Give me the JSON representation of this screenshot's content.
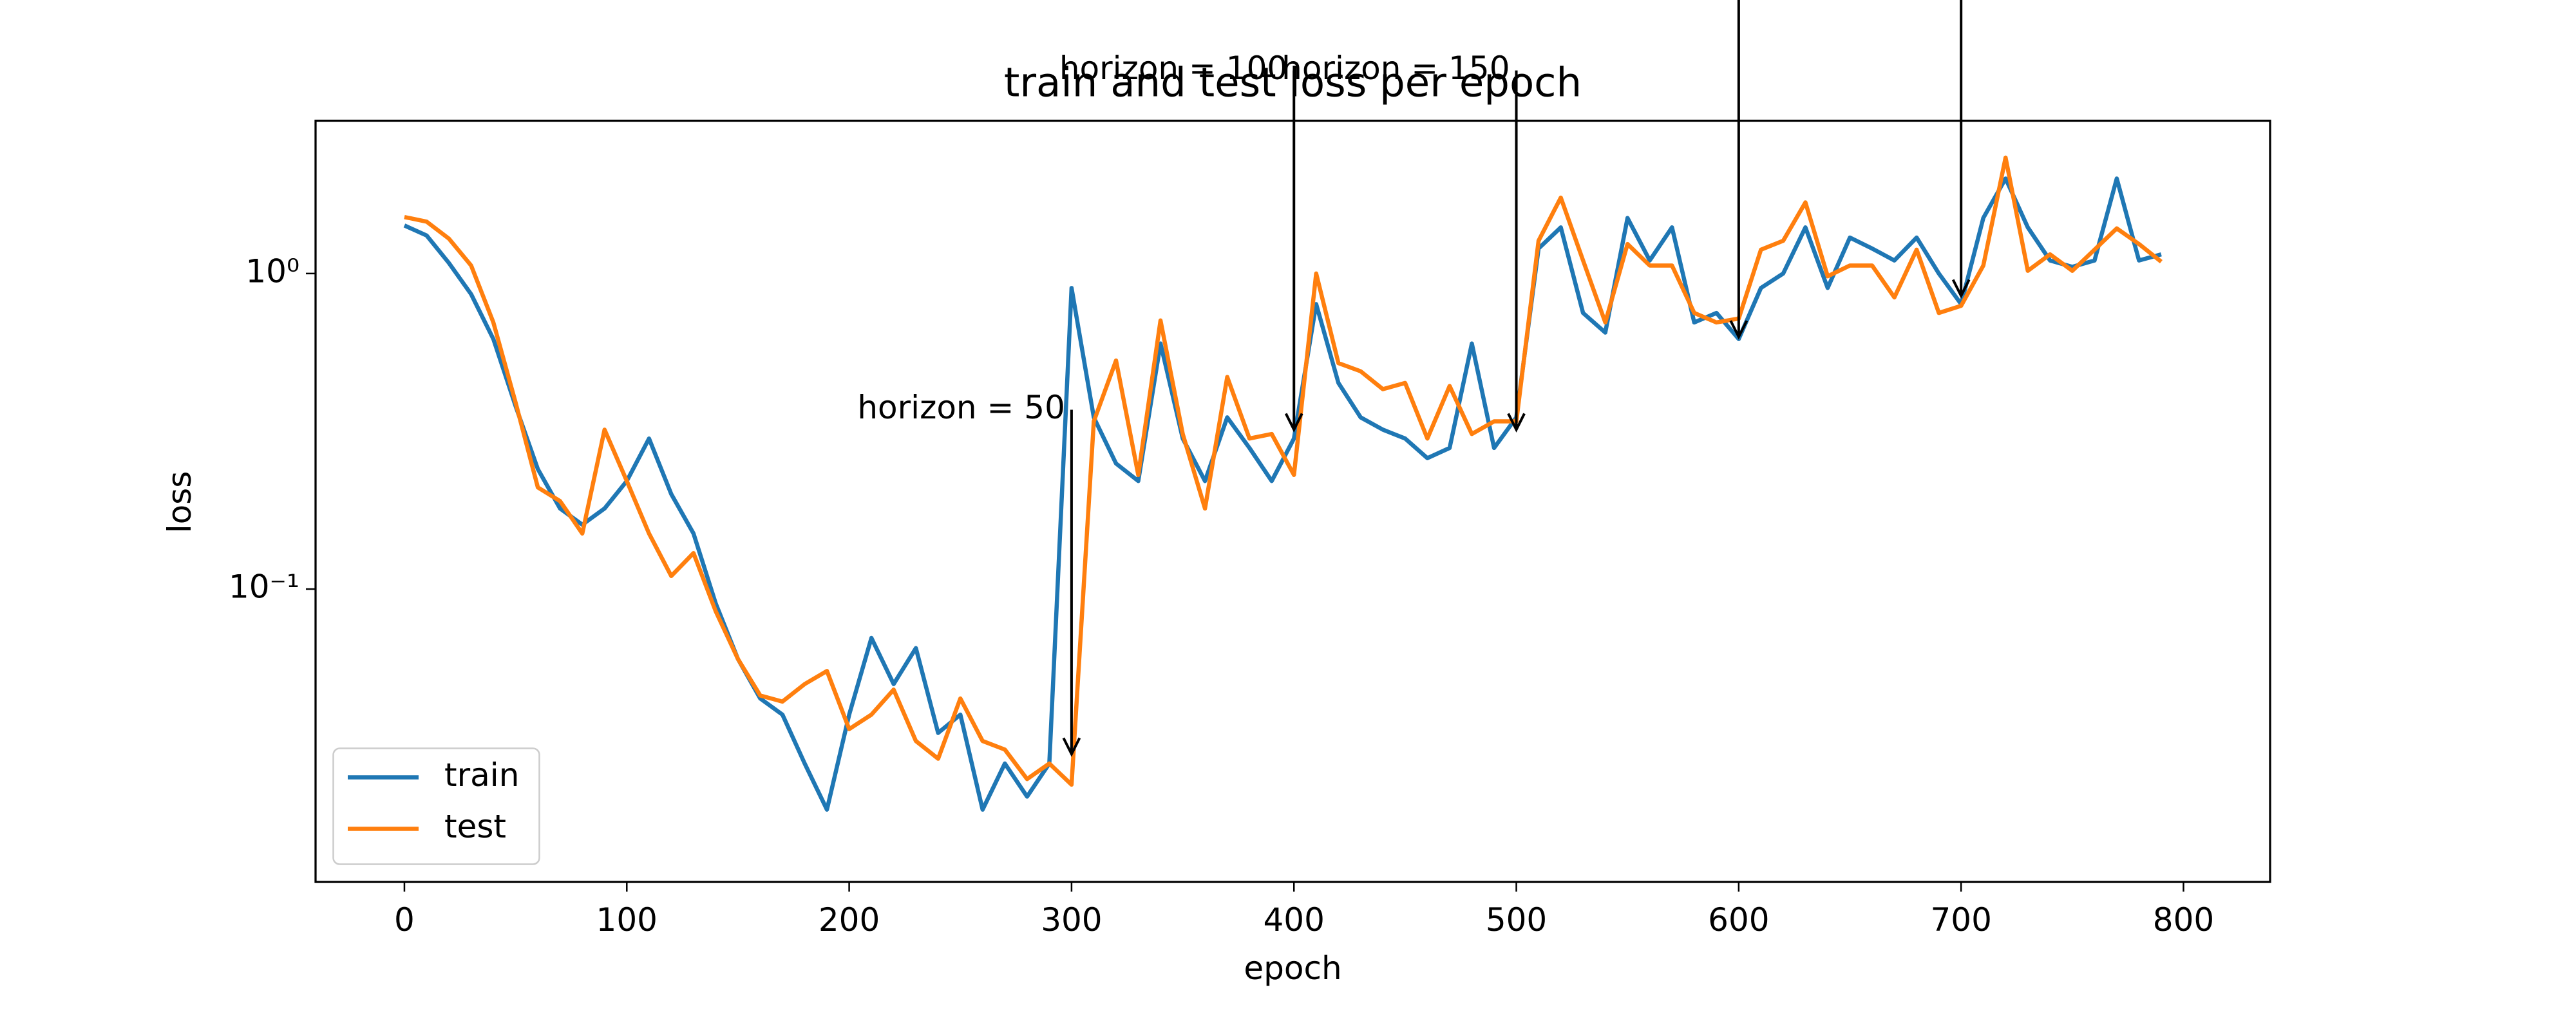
{
  "chart_data": {
    "type": "line",
    "title": "train and test loss per epoch",
    "x_label": "epoch",
    "y_label": "loss",
    "yscale": "log",
    "xlim": [
      -39.95,
      838.95
    ],
    "ylim": [
      0.0118,
      3.05
    ],
    "xticks": [
      0,
      100,
      200,
      300,
      400,
      500,
      600,
      700,
      800
    ],
    "yticks": [
      {
        "value": 0.1,
        "label": "10⁻¹"
      },
      {
        "value": 1,
        "label": "10⁰"
      }
    ],
    "legend": "lower left",
    "x": [
      0,
      10,
      20,
      30,
      40,
      50,
      60,
      70,
      80,
      90,
      100,
      110,
      120,
      130,
      140,
      150,
      160,
      170,
      180,
      190,
      200,
      210,
      220,
      230,
      240,
      250,
      260,
      270,
      280,
      290,
      300,
      310,
      320,
      330,
      340,
      350,
      360,
      370,
      380,
      390,
      400,
      410,
      420,
      430,
      440,
      450,
      460,
      470,
      480,
      490,
      500,
      510,
      520,
      530,
      540,
      550,
      560,
      570,
      580,
      590,
      600,
      610,
      620,
      630,
      640,
      650,
      660,
      670,
      680,
      690,
      700,
      710,
      720,
      730,
      740,
      750,
      760,
      770,
      780,
      790
    ],
    "series": [
      {
        "name": "train",
        "color": "#1f77b4",
        "values": [
          1.42,
          1.32,
          1.08,
          0.86,
          0.62,
          0.38,
          0.24,
          0.18,
          0.16,
          0.18,
          0.22,
          0.3,
          0.2,
          0.15,
          0.09,
          0.06,
          0.045,
          0.04,
          0.028,
          0.02,
          0.04,
          0.07,
          0.05,
          0.065,
          0.035,
          0.04,
          0.02,
          0.028,
          0.022,
          0.028,
          0.9,
          0.35,
          0.25,
          0.22,
          0.6,
          0.3,
          0.22,
          0.35,
          0.28,
          0.22,
          0.3,
          0.8,
          0.45,
          0.35,
          0.32,
          0.3,
          0.26,
          0.28,
          0.6,
          0.28,
          0.35,
          1.2,
          1.4,
          0.75,
          0.65,
          1.5,
          1.1,
          1.4,
          0.7,
          0.75,
          0.62,
          0.9,
          1.0,
          1.4,
          0.9,
          1.3,
          1.2,
          1.1,
          1.3,
          1.0,
          0.8,
          1.5,
          2.0,
          1.4,
          1.1,
          1.05,
          1.1,
          2.0,
          1.1,
          1.15
        ]
      },
      {
        "name": "test",
        "color": "#ff7f0e",
        "values": [
          1.51,
          1.46,
          1.29,
          1.06,
          0.7,
          0.39,
          0.21,
          0.19,
          0.15,
          0.32,
          0.22,
          0.15,
          0.11,
          0.13,
          0.085,
          0.06,
          0.046,
          0.044,
          0.05,
          0.055,
          0.036,
          0.04,
          0.048,
          0.033,
          0.029,
          0.045,
          0.033,
          0.031,
          0.025,
          0.028,
          0.024,
          0.34,
          0.53,
          0.23,
          0.71,
          0.31,
          0.18,
          0.47,
          0.3,
          0.31,
          0.23,
          1.0,
          0.52,
          0.49,
          0.43,
          0.45,
          0.3,
          0.44,
          0.31,
          0.34,
          0.34,
          1.27,
          1.74,
          1.1,
          0.7,
          1.24,
          1.06,
          1.06,
          0.75,
          0.7,
          0.72,
          1.19,
          1.27,
          1.68,
          0.98,
          1.06,
          1.06,
          0.84,
          1.19,
          0.75,
          0.79,
          1.06,
          2.33,
          1.02,
          1.15,
          1.02,
          1.19,
          1.39,
          1.24,
          1.09
        ]
      }
    ],
    "annotations": [
      {
        "text": "horizon = 50",
        "x": 300,
        "y": 0.03,
        "text_y": 0.37
      },
      {
        "text": "horizon = 100",
        "x": 400,
        "y": 0.32,
        "text_y": 4.4
      },
      {
        "text": "horizon = 150",
        "x": 500,
        "y": 0.32,
        "text_y": 4.4
      },
      {
        "x": 600,
        "y": 0.63,
        "text_y": 8
      },
      {
        "x": 700,
        "y": 0.85,
        "text_y": 8
      }
    ]
  }
}
